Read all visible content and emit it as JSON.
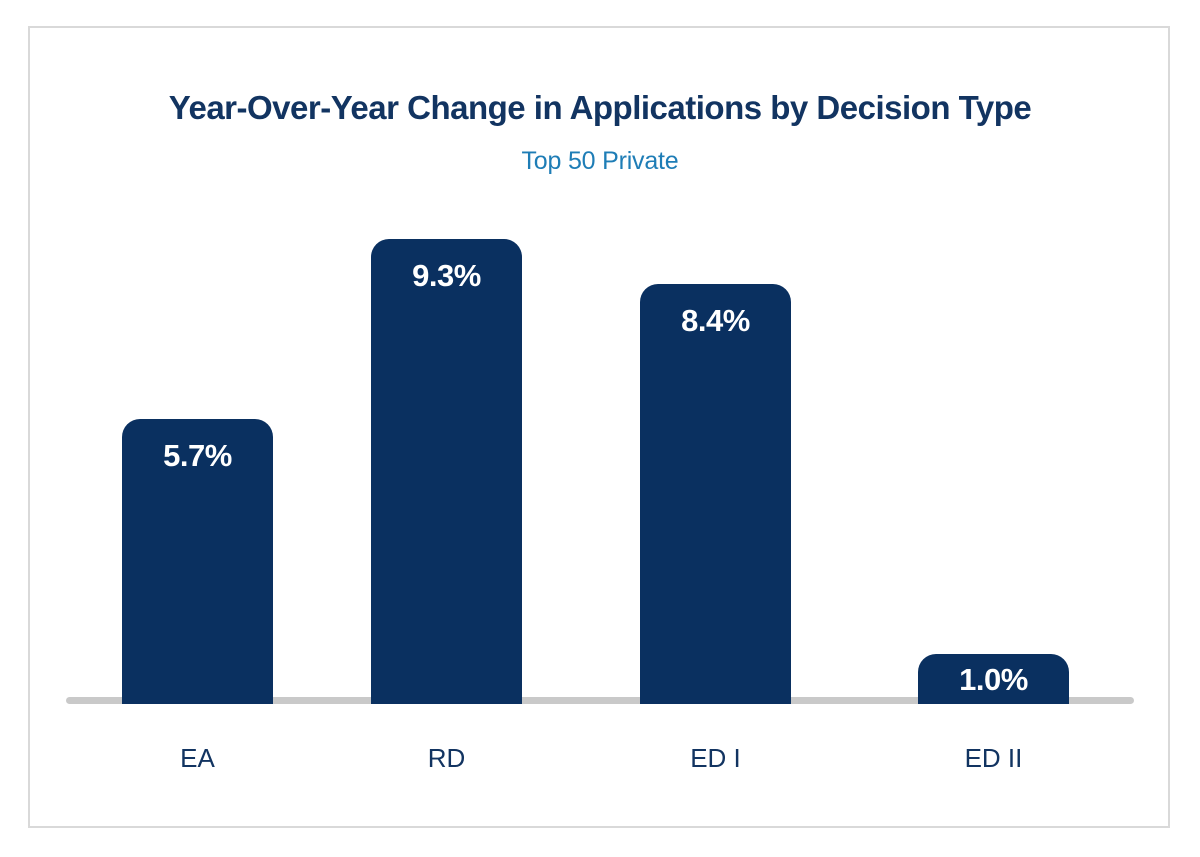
{
  "chart_data": {
    "type": "bar",
    "title": "Year-Over-Year Change in Applications by Decision Type",
    "subtitle": "Top 50 Private",
    "categories": [
      "EA",
      "RD",
      "ED I",
      "ED II"
    ],
    "values": [
      5.7,
      9.3,
      8.4,
      1.0
    ],
    "value_labels": [
      "5.7%",
      "9.3%",
      "8.4%",
      "1.0%"
    ],
    "xlabel": "",
    "ylabel": "",
    "ylim": [
      0,
      10
    ],
    "grid": false,
    "legend": false,
    "value_label_position": "inside-top",
    "colors": {
      "bar": "#0a3060",
      "title_text": "#123461",
      "subtitle_text": "#1e7db6",
      "value_label_text": "#ffffff",
      "axis_label_text": "#123461",
      "baseline": "#c9c9c9",
      "frame_border": "#d9d9d9",
      "background": "#ffffff"
    }
  }
}
